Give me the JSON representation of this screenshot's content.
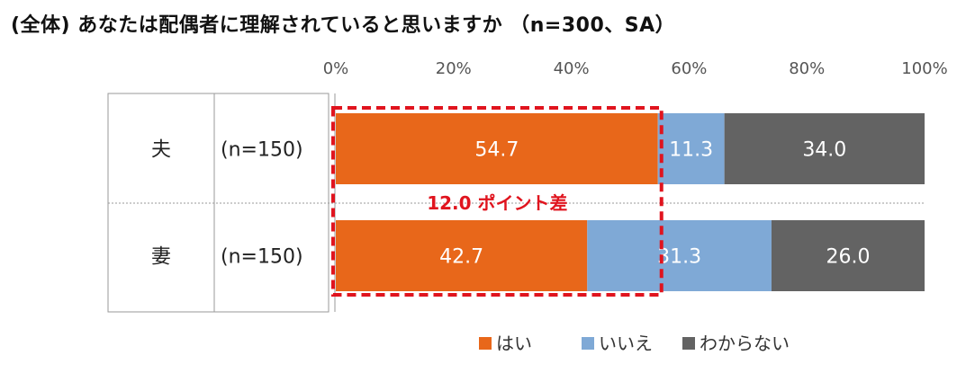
{
  "title": "(全体) あなたは配偶者に理解されていると思いますか （n=300、SA）",
  "chart_data": {
    "type": "bar",
    "orientation": "horizontal-stacked-100",
    "x_ticks": [
      "0%",
      "20%",
      "40%",
      "60%",
      "80%",
      "100%"
    ],
    "xlim": [
      0,
      100
    ],
    "rows": [
      {
        "label": "夫",
        "n_label": "(n=150)",
        "values": [
          54.7,
          11.3,
          34.0
        ]
      },
      {
        "label": "妻",
        "n_label": "(n=150)",
        "values": [
          42.7,
          31.3,
          26.0
        ]
      }
    ],
    "series": [
      {
        "name": "はい",
        "color": "#e8671a"
      },
      {
        "name": "いいえ",
        "color": "#7fa9d6"
      },
      {
        "name": "わからない",
        "color": "#636363"
      }
    ],
    "annotation": {
      "text": "12.0 ポイント差",
      "color": "#e0141e"
    },
    "legend_position": "bottom"
  }
}
